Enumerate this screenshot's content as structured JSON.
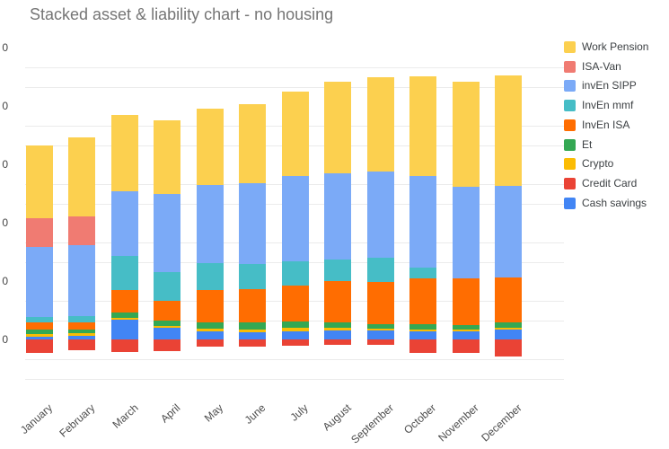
{
  "title": "Stacked asset & liability chart - no housing",
  "chart_data": {
    "type": "bar",
    "stacked": true,
    "title": "Stacked asset & liability chart - no housing",
    "xlabel": "",
    "ylabel": "",
    "categories": [
      "January",
      "February",
      "March",
      "April",
      "May",
      "June",
      "July",
      "August",
      "September",
      "October",
      "November",
      "December"
    ],
    "series": [
      {
        "name": "Cash savings",
        "color": "#4285F4",
        "values": [
          0.055,
          0.066,
          0.343,
          0.197,
          0.138,
          0.128,
          0.143,
          0.154,
          0.158,
          0.143,
          0.143,
          0.169
        ]
      },
      {
        "name": "Credit Card",
        "color": "#EA4335",
        "values": [
          -0.231,
          -0.185,
          -0.215,
          -0.2,
          -0.125,
          -0.123,
          -0.108,
          -0.092,
          -0.092,
          -0.222,
          -0.231,
          -0.283
        ]
      },
      {
        "name": "Crypto",
        "color": "#FBBC04",
        "values": [
          0.046,
          0.046,
          0.031,
          0.038,
          0.051,
          0.051,
          0.062,
          0.046,
          0.031,
          0.035,
          0.035,
          0.035
        ]
      },
      {
        "name": "Et",
        "color": "#34A853",
        "values": [
          0.068,
          0.062,
          0.088,
          0.092,
          0.103,
          0.114,
          0.103,
          0.092,
          0.077,
          0.088,
          0.077,
          0.088
        ]
      },
      {
        "name": "InvEn ISA",
        "color": "#FF6D01",
        "values": [
          0.123,
          0.123,
          0.394,
          0.338,
          0.563,
          0.578,
          0.615,
          0.717,
          0.728,
          0.789,
          0.8,
          0.778
        ]
      },
      {
        "name": "InvEn mmf",
        "color": "#46BDC6",
        "values": [
          0.102,
          0.108,
          0.58,
          0.497,
          0.452,
          0.422,
          0.42,
          0.365,
          0.411,
          0.18,
          0,
          0
        ]
      },
      {
        "name": "invEn SIPP",
        "color": "#7BAAF7",
        "values": [
          1.195,
          1.215,
          1.103,
          1.338,
          1.343,
          1.389,
          1.462,
          1.477,
          1.477,
          1.569,
          1.565,
          1.565
        ]
      },
      {
        "name": "ISA-Van",
        "color": "#F07B72",
        "values": [
          0.492,
          0.492,
          0,
          0,
          0,
          0,
          0,
          0,
          0,
          0,
          0,
          0
        ]
      },
      {
        "name": "Work Pension",
        "color": "#FCD04F",
        "values": [
          1.246,
          1.349,
          1.317,
          1.262,
          1.312,
          1.349,
          1.446,
          1.574,
          1.615,
          1.712,
          1.8,
          1.897
        ]
      }
    ],
    "value_unit": "relative axis units: 1.0 = one labeled gridline interval; numeric y-axis labels are clipped at the left edge of the screenshot and show only a trailing '0'",
    "y_axis": {
      "tick_labels": [
        "0",
        "0",
        "0",
        "0",
        "0",
        "0"
      ],
      "labels_clipped": true,
      "min": -1,
      "max": 5,
      "zero_at_sixth_labeled_gridline": true
    },
    "grid": true,
    "legend": {
      "position": "right",
      "order_top_to_bottom": [
        "Work Pension",
        "ISA-Van",
        "invEn SIPP",
        "InvEn mmf",
        "InvEn ISA",
        "Et",
        "Crypto",
        "Credit Card",
        "Cash savings"
      ]
    }
  }
}
